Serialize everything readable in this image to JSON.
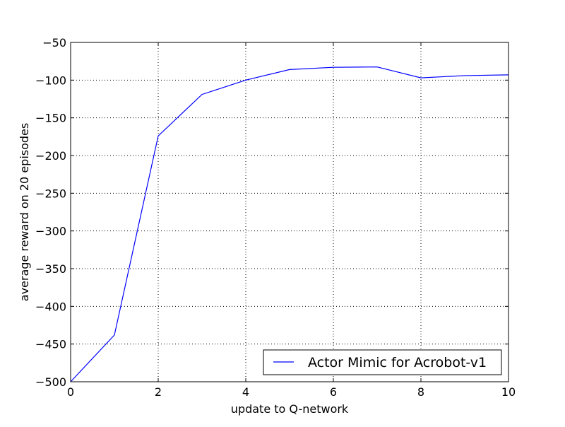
{
  "chart_data": {
    "type": "line",
    "title": "",
    "xlabel": "update to Q-network",
    "ylabel": "average reward on 20 episodes",
    "xlim": [
      0,
      10
    ],
    "ylim": [
      -500,
      -50
    ],
    "x_ticks": [
      0,
      2,
      4,
      6,
      8,
      10
    ],
    "x_tick_labels": [
      "0",
      "2",
      "4",
      "6",
      "8",
      "10"
    ],
    "y_ticks": [
      -50,
      -100,
      -150,
      -200,
      -250,
      -300,
      -350,
      -400,
      -450,
      -500
    ],
    "y_tick_labels": [
      "−50",
      "−100",
      "−150",
      "−200",
      "−250",
      "−300",
      "−350",
      "−400",
      "−450",
      "−500"
    ],
    "grid": true,
    "legend_position": "lower-right",
    "series": [
      {
        "name": "Actor Mimic for Acrobot-v1",
        "color": "#0000ff",
        "x": [
          0,
          1,
          2,
          3,
          4,
          5,
          6,
          7,
          8,
          9,
          10
        ],
        "y": [
          -500,
          -438,
          -174,
          -119,
          -100,
          -86,
          -83,
          -82.5,
          -97,
          -94,
          -93
        ]
      }
    ]
  }
}
